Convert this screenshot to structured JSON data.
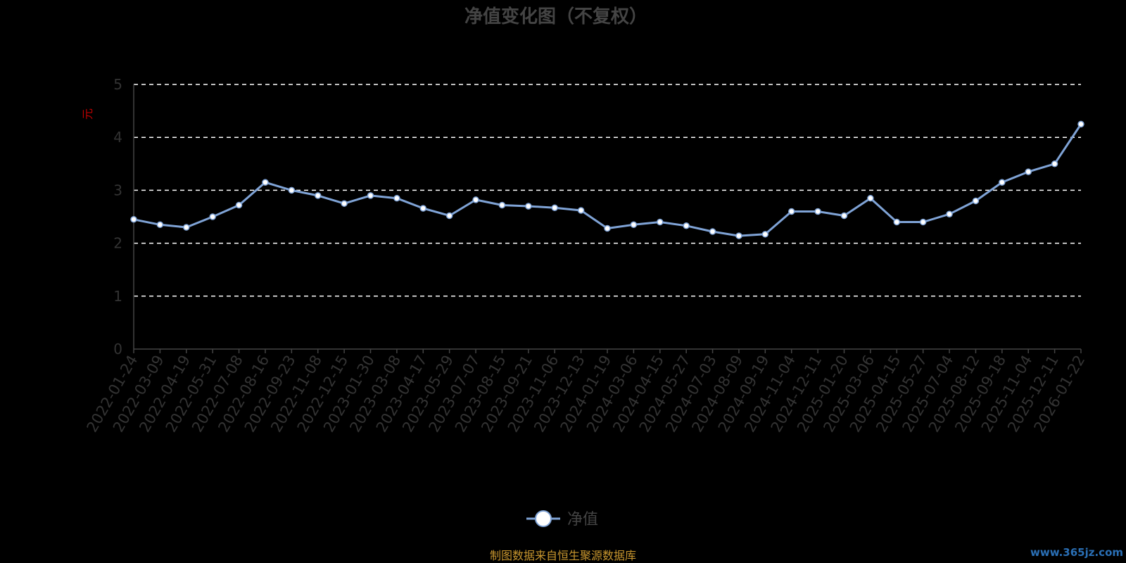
{
  "chart_data": {
    "type": "line",
    "title": "净值变化图（不复权）",
    "ylabel": "元",
    "xlabel": "",
    "ylim": [
      0,
      5
    ],
    "yticks": [
      "0",
      "1",
      "2",
      "3",
      "4",
      "5"
    ],
    "grid": true,
    "legend_position": "bottom-center",
    "categories": [
      "2022-01-24",
      "2022-03-09",
      "2022-04-19",
      "2022-05-31",
      "2022-07-08",
      "2022-08-16",
      "2022-09-23",
      "2022-11-08",
      "2022-12-15",
      "2023-01-30",
      "2023-03-08",
      "2023-04-17",
      "2023-05-29",
      "2023-07-07",
      "2023-08-15",
      "2023-09-21",
      "2023-11-06",
      "2023-12-13",
      "2024-01-19",
      "2024-03-06",
      "2024-04-15",
      "2024-05-27",
      "2024-07-03",
      "2024-08-09",
      "2024-09-19",
      "2024-11-04",
      "2024-12-11",
      "2025-01-20",
      "2025-03-06",
      "2025-04-15",
      "2025-05-27",
      "2025-07-04",
      "2025-08-12",
      "2025-09-18",
      "2025-11-04",
      "2025-12-11",
      "2026-01-22"
    ],
    "series": [
      {
        "name": "净值",
        "color": "#7fa3d6",
        "values": [
          2.45,
          2.35,
          2.3,
          2.5,
          2.72,
          3.15,
          3.0,
          2.9,
          2.75,
          2.9,
          2.85,
          2.66,
          2.52,
          2.82,
          2.72,
          2.7,
          2.67,
          2.62,
          2.28,
          2.35,
          2.4,
          2.33,
          2.22,
          2.14,
          2.17,
          2.6,
          2.6,
          2.52,
          2.85,
          2.4,
          2.4,
          2.55,
          2.8,
          3.15,
          3.35,
          3.5,
          4.25
        ]
      }
    ]
  },
  "source_note": "制图数据来自恒生聚源数据库",
  "watermark": "www.365jz.com",
  "colors": {
    "background": "#000000",
    "grid": "#ffffff",
    "axis": "#444444",
    "line": "#7fa3d6",
    "marker_fill": "#ffffff"
  }
}
